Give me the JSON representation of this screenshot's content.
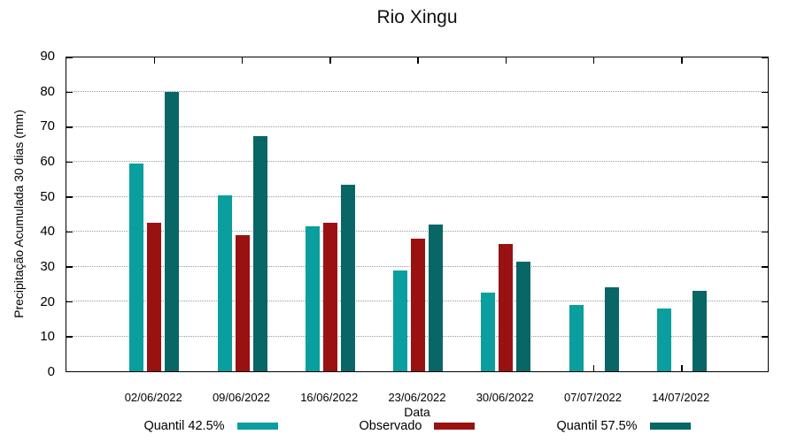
{
  "chart_data": {
    "type": "bar",
    "title": "Rio Xingu",
    "xlabel": "Data",
    "ylabel": "Precipitação Acumulada 30 dias (mm)",
    "categories": [
      "02/06/2022",
      "09/06/2022",
      "16/06/2022",
      "23/06/2022",
      "30/06/2022",
      "07/07/2022",
      "14/07/2022"
    ],
    "series": [
      {
        "name": "Quantil 42.5%",
        "color": "#0a9e9e",
        "values": [
          59.5,
          50.5,
          41.5,
          29,
          22.5,
          19,
          18
        ]
      },
      {
        "name": "Observado",
        "color": "#9a1111",
        "values": [
          42.5,
          39,
          42.5,
          38,
          36.5,
          null,
          null
        ]
      },
      {
        "name": "Quantil 57.5%",
        "color": "#096666",
        "values": [
          80,
          67.5,
          53.5,
          42,
          31.5,
          24,
          23
        ]
      }
    ],
    "ylim": [
      0,
      90
    ],
    "yticks": [
      0,
      10,
      20,
      30,
      40,
      50,
      60,
      70,
      80,
      90
    ],
    "grid": true,
    "grid_color": "#9a9a9a",
    "axis_color": "#000000",
    "legend_position": "bottom-center"
  }
}
